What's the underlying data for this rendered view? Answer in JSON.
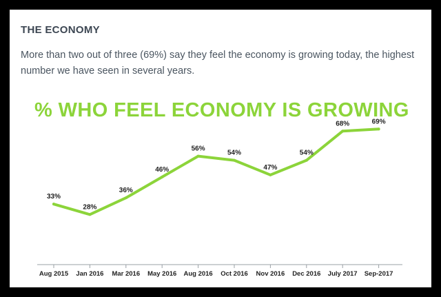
{
  "section": {
    "title": "THE ECONOMY",
    "intro": "More than two out of three (69%) say they feel the economy is growing today, the highest number we have seen in several years."
  },
  "colors": {
    "accent": "#8cd43a",
    "axis": "#9aa0a6",
    "text_dark": "#222222",
    "heading": "#3c4652"
  },
  "chart_data": {
    "type": "line",
    "title": "% WHO FEEL ECONOMY IS GROWING",
    "categories": [
      "Aug 2015",
      "Jan 2016",
      "Mar 2016",
      "May 2016",
      "Aug 2016",
      "Oct 2016",
      "Nov 2016",
      "Dec 2016",
      "July 2017",
      "Sep-2017"
    ],
    "series": [
      {
        "name": "% who feel economy is growing",
        "values": [
          33,
          28,
          36,
          46,
          56,
          54,
          47,
          54,
          68,
          69
        ],
        "labels": [
          "33%",
          "28%",
          "36%",
          "46%",
          "56%",
          "54%",
          "47%",
          "54%",
          "68%",
          "69%"
        ]
      }
    ],
    "xlabel": "",
    "ylabel": "",
    "ylim": [
      0,
      80
    ],
    "grid": false,
    "legend": "none"
  }
}
